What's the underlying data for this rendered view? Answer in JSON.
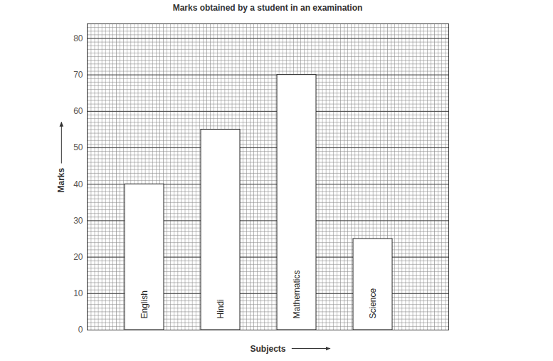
{
  "chart_data": {
    "type": "bar",
    "title": "Marks obtained by a student in an examination",
    "categories": [
      "English",
      "Hindi",
      "Mathematics",
      "Science"
    ],
    "values": [
      40,
      55,
      70,
      25
    ],
    "xlabel": "Subjects",
    "ylabel": "Marks",
    "color": "#ffffff",
    "ylim": [
      0,
      84
    ],
    "yticks": [
      0,
      10,
      20,
      30,
      40,
      50,
      60,
      70,
      80
    ],
    "grid": true
  }
}
